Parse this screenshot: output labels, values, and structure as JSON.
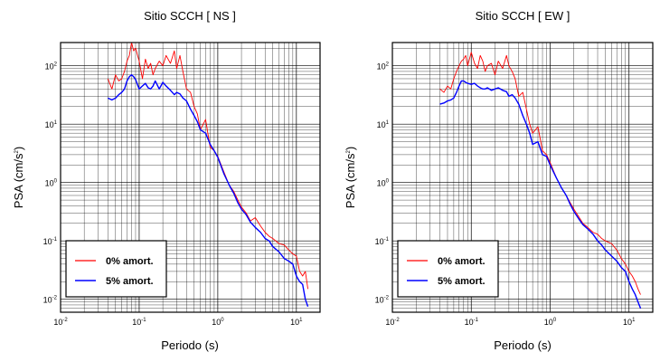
{
  "chart_data": [
    {
      "type": "line",
      "title": "Sitio SCCH [ NS ]",
      "xlabel": "Periodo (s)",
      "ylabel_main": "PSA (cm/s",
      "ylabel_sup": "2",
      "ylabel_tail": ")",
      "xscale": "log",
      "yscale": "log",
      "xlim": [
        0.01,
        20
      ],
      "ylim": [
        0.006,
        250
      ],
      "grid": true,
      "legend_position": "bottom-left",
      "x_ticks": [
        {
          "base": "10",
          "exp": "-2",
          "value": 0.01
        },
        {
          "base": "10",
          "exp": "-1",
          "value": 0.1
        },
        {
          "base": "10",
          "exp": "0",
          "value": 1
        },
        {
          "base": "10",
          "exp": "1",
          "value": 10
        }
      ],
      "y_ticks": [
        {
          "base": "10",
          "exp": "-2",
          "value": 0.01
        },
        {
          "base": "10",
          "exp": "-1",
          "value": 0.1
        },
        {
          "base": "10",
          "exp": "0",
          "value": 1
        },
        {
          "base": "10",
          "exp": "1",
          "value": 10
        },
        {
          "base": "10",
          "exp": "2",
          "value": 100
        }
      ],
      "series": [
        {
          "name": "0% amort.",
          "color": "#ff0000",
          "x": [
            0.04,
            0.045,
            0.05,
            0.055,
            0.06,
            0.065,
            0.07,
            0.075,
            0.08,
            0.085,
            0.09,
            0.1,
            0.11,
            0.12,
            0.13,
            0.14,
            0.15,
            0.16,
            0.18,
            0.2,
            0.22,
            0.25,
            0.28,
            0.3,
            0.33,
            0.36,
            0.4,
            0.45,
            0.5,
            0.55,
            0.6,
            0.7,
            0.8,
            0.9,
            1.0,
            1.2,
            1.4,
            1.6,
            1.8,
            2.0,
            2.3,
            2.6,
            3.0,
            3.5,
            4.0,
            4.5,
            5.0,
            6.0,
            7.0,
            8.0,
            9.0,
            10.0,
            11.0,
            12.0,
            13.0,
            14.0
          ],
          "y": [
            60,
            40,
            70,
            55,
            60,
            80,
            120,
            150,
            250,
            180,
            200,
            120,
            60,
            130,
            90,
            110,
            70,
            90,
            120,
            100,
            150,
            110,
            180,
            90,
            150,
            80,
            40,
            35,
            20,
            15,
            8,
            12,
            4,
            3.5,
            2.8,
            1.5,
            0.9,
            0.7,
            0.5,
            0.38,
            0.3,
            0.22,
            0.25,
            0.18,
            0.14,
            0.12,
            0.11,
            0.09,
            0.085,
            0.07,
            0.06,
            0.055,
            0.03,
            0.025,
            0.03,
            0.015
          ]
        },
        {
          "name": "5% amort.",
          "color": "#0000ff",
          "x": [
            0.04,
            0.045,
            0.05,
            0.055,
            0.06,
            0.065,
            0.07,
            0.075,
            0.08,
            0.085,
            0.09,
            0.1,
            0.11,
            0.12,
            0.13,
            0.14,
            0.15,
            0.16,
            0.18,
            0.2,
            0.22,
            0.25,
            0.28,
            0.3,
            0.33,
            0.36,
            0.4,
            0.45,
            0.5,
            0.55,
            0.6,
            0.7,
            0.8,
            0.9,
            1.0,
            1.2,
            1.4,
            1.6,
            1.8,
            2.0,
            2.3,
            2.6,
            3.0,
            3.5,
            4.0,
            4.5,
            5.0,
            6.0,
            7.0,
            8.0,
            9.0,
            10.0,
            11.0,
            12.0,
            13.0,
            14.0
          ],
          "y": [
            28,
            26,
            28,
            32,
            35,
            40,
            55,
            65,
            70,
            65,
            58,
            40,
            45,
            50,
            42,
            40,
            45,
            55,
            40,
            52,
            45,
            38,
            32,
            35,
            33,
            28,
            25,
            18,
            14,
            11,
            8,
            7,
            4.5,
            3.5,
            2.7,
            1.4,
            0.9,
            0.65,
            0.45,
            0.35,
            0.28,
            0.21,
            0.17,
            0.14,
            0.11,
            0.1,
            0.08,
            0.065,
            0.05,
            0.045,
            0.04,
            0.025,
            0.02,
            0.018,
            0.01,
            0.0075
          ]
        }
      ]
    },
    {
      "type": "line",
      "title": "Sitio SCCH [ EW ]",
      "xlabel": "Periodo (s)",
      "ylabel_main": "PSA (cm/s",
      "ylabel_sup": "2",
      "ylabel_tail": ")",
      "xscale": "log",
      "yscale": "log",
      "xlim": [
        0.01,
        20
      ],
      "ylim": [
        0.006,
        250
      ],
      "grid": true,
      "legend_position": "bottom-left",
      "x_ticks": [
        {
          "base": "10",
          "exp": "-2",
          "value": 0.01
        },
        {
          "base": "10",
          "exp": "-1",
          "value": 0.1
        },
        {
          "base": "10",
          "exp": "0",
          "value": 1
        },
        {
          "base": "10",
          "exp": "1",
          "value": 10
        }
      ],
      "y_ticks": [
        {
          "base": "10",
          "exp": "-2",
          "value": 0.01
        },
        {
          "base": "10",
          "exp": "-1",
          "value": 0.1
        },
        {
          "base": "10",
          "exp": "0",
          "value": 1
        },
        {
          "base": "10",
          "exp": "1",
          "value": 10
        },
        {
          "base": "10",
          "exp": "2",
          "value": 100
        }
      ],
      "series": [
        {
          "name": "0% amort.",
          "color": "#ff0000",
          "x": [
            0.04,
            0.045,
            0.05,
            0.055,
            0.06,
            0.065,
            0.07,
            0.075,
            0.08,
            0.085,
            0.09,
            0.1,
            0.11,
            0.12,
            0.13,
            0.14,
            0.15,
            0.16,
            0.18,
            0.2,
            0.22,
            0.25,
            0.28,
            0.3,
            0.33,
            0.36,
            0.4,
            0.45,
            0.5,
            0.55,
            0.6,
            0.7,
            0.8,
            0.9,
            1.0,
            1.2,
            1.4,
            1.6,
            1.8,
            2.0,
            2.3,
            2.6,
            3.0,
            3.5,
            4.0,
            4.5,
            5.0,
            6.0,
            7.0,
            8.0,
            9.0,
            10.0,
            11.0,
            12.0,
            13.0,
            14.0
          ],
          "y": [
            40,
            35,
            45,
            40,
            60,
            80,
            100,
            120,
            130,
            150,
            100,
            170,
            110,
            90,
            150,
            120,
            80,
            100,
            110,
            70,
            120,
            90,
            150,
            100,
            80,
            60,
            30,
            35,
            18,
            10,
            7,
            9,
            3.5,
            3,
            2.2,
            1.2,
            0.8,
            0.6,
            0.45,
            0.35,
            0.26,
            0.2,
            0.17,
            0.14,
            0.13,
            0.11,
            0.1,
            0.09,
            0.07,
            0.05,
            0.04,
            0.03,
            0.025,
            0.02,
            0.015,
            0.012
          ]
        },
        {
          "name": "5% amort.",
          "color": "#0000ff",
          "x": [
            0.04,
            0.045,
            0.05,
            0.055,
            0.06,
            0.065,
            0.07,
            0.075,
            0.08,
            0.085,
            0.09,
            0.1,
            0.11,
            0.12,
            0.13,
            0.14,
            0.15,
            0.16,
            0.18,
            0.2,
            0.22,
            0.25,
            0.28,
            0.3,
            0.33,
            0.36,
            0.4,
            0.45,
            0.5,
            0.55,
            0.6,
            0.7,
            0.8,
            0.9,
            1.0,
            1.2,
            1.4,
            1.6,
            1.8,
            2.0,
            2.3,
            2.6,
            3.0,
            3.5,
            4.0,
            4.5,
            5.0,
            6.0,
            7.0,
            8.0,
            9.0,
            10.0,
            11.0,
            12.0,
            13.0,
            14.0
          ],
          "y": [
            22,
            23,
            25,
            26,
            28,
            35,
            45,
            55,
            55,
            52,
            50,
            48,
            50,
            45,
            42,
            40,
            40,
            42,
            38,
            40,
            42,
            38,
            36,
            30,
            32,
            28,
            22,
            14,
            10,
            7,
            4.5,
            5,
            3,
            2.8,
            2,
            1.2,
            0.8,
            0.6,
            0.42,
            0.32,
            0.24,
            0.19,
            0.16,
            0.13,
            0.1,
            0.085,
            0.07,
            0.055,
            0.045,
            0.035,
            0.03,
            0.02,
            0.015,
            0.012,
            0.009,
            0.007
          ]
        }
      ]
    }
  ]
}
